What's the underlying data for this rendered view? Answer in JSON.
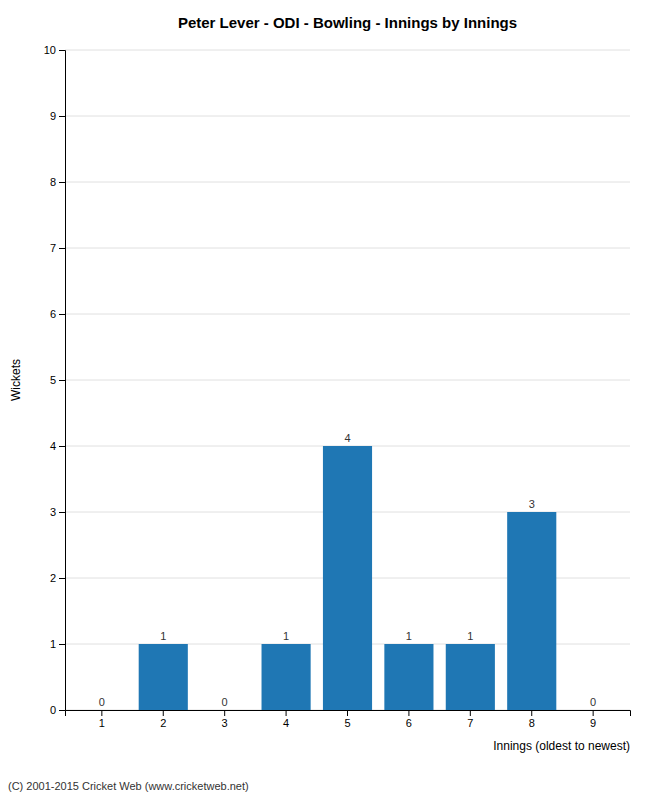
{
  "chart_data": {
    "type": "bar",
    "title": "Peter Lever - ODI - Bowling - Innings by Innings",
    "xlabel": "Innings (oldest to newest)",
    "ylabel": "Wickets",
    "categories": [
      1,
      2,
      3,
      4,
      5,
      6,
      7,
      8,
      9
    ],
    "values": [
      0,
      1,
      0,
      1,
      4,
      1,
      1,
      3,
      0
    ],
    "ylim": [
      0,
      10
    ],
    "yticks": [
      0,
      1,
      2,
      3,
      4,
      5,
      6,
      7,
      8,
      9,
      10
    ],
    "grid": true,
    "data_labels": true,
    "annotations": [
      "(C) 2001-2015 Cricket Web (www.cricketweb.net)"
    ]
  }
}
